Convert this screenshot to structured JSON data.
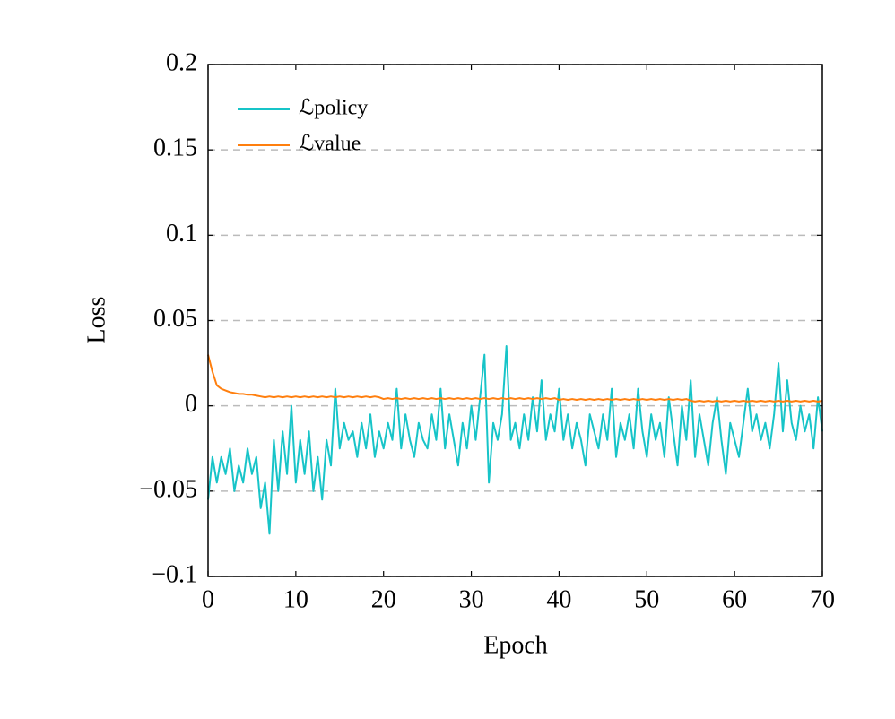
{
  "chart_data": {
    "type": "line",
    "xlabel": "Epoch",
    "ylabel": "Loss",
    "x": [
      0,
      0.5,
      1,
      1.5,
      2,
      2.5,
      3,
      3.5,
      4,
      4.5,
      5,
      5.5,
      6,
      6.5,
      7,
      7.5,
      8,
      8.5,
      9,
      9.5,
      10,
      10.5,
      11,
      11.5,
      12,
      12.5,
      13,
      13.5,
      14,
      14.5,
      15,
      15.5,
      16,
      16.5,
      17,
      17.5,
      18,
      18.5,
      19,
      19.5,
      20,
      20.5,
      21,
      21.5,
      22,
      22.5,
      23,
      23.5,
      24,
      24.5,
      25,
      25.5,
      26,
      26.5,
      27,
      27.5,
      28,
      28.5,
      29,
      29.5,
      30,
      30.5,
      31,
      31.5,
      32,
      32.5,
      33,
      33.5,
      34,
      34.5,
      35,
      35.5,
      36,
      36.5,
      37,
      37.5,
      38,
      38.5,
      39,
      39.5,
      40,
      40.5,
      41,
      41.5,
      42,
      42.5,
      43,
      43.5,
      44,
      44.5,
      45,
      45.5,
      46,
      46.5,
      47,
      47.5,
      48,
      48.5,
      49,
      49.5,
      50,
      50.5,
      51,
      51.5,
      52,
      52.5,
      53,
      53.5,
      54,
      54.5,
      55,
      55.5,
      56,
      56.5,
      57,
      57.5,
      58,
      58.5,
      59,
      59.5,
      60,
      60.5,
      61,
      61.5,
      62,
      62.5,
      63,
      63.5,
      64,
      64.5,
      65,
      65.5,
      66,
      66.5,
      67,
      67.5,
      68,
      68.5,
      69,
      69.5,
      70
    ],
    "series": [
      {
        "name": "ℒpolicy",
        "color": "#17c4c8",
        "values": [
          -0.055,
          -0.03,
          -0.045,
          -0.03,
          -0.04,
          -0.025,
          -0.05,
          -0.035,
          -0.045,
          -0.025,
          -0.04,
          -0.03,
          -0.06,
          -0.045,
          -0.075,
          -0.02,
          -0.05,
          -0.015,
          -0.04,
          0.0,
          -0.045,
          -0.02,
          -0.04,
          -0.015,
          -0.05,
          -0.03,
          -0.055,
          -0.02,
          -0.035,
          0.01,
          -0.025,
          -0.01,
          -0.02,
          -0.015,
          -0.03,
          -0.01,
          -0.025,
          -0.005,
          -0.03,
          -0.015,
          -0.025,
          -0.01,
          -0.02,
          0.01,
          -0.025,
          -0.005,
          -0.02,
          -0.03,
          -0.01,
          -0.02,
          -0.025,
          -0.005,
          -0.02,
          0.01,
          -0.025,
          -0.005,
          -0.02,
          -0.035,
          -0.01,
          -0.025,
          0.0,
          -0.02,
          0.005,
          0.03,
          -0.045,
          -0.01,
          -0.02,
          -0.005,
          0.035,
          -0.02,
          -0.01,
          -0.025,
          -0.005,
          -0.02,
          0.005,
          -0.015,
          0.015,
          -0.02,
          -0.005,
          -0.015,
          0.01,
          -0.02,
          -0.005,
          -0.025,
          -0.01,
          -0.02,
          -0.035,
          -0.005,
          -0.015,
          -0.025,
          -0.005,
          -0.02,
          0.01,
          -0.03,
          -0.01,
          -0.02,
          -0.005,
          -0.025,
          0.01,
          -0.015,
          -0.03,
          -0.005,
          -0.02,
          -0.01,
          -0.03,
          0.005,
          -0.015,
          -0.035,
          0.0,
          -0.02,
          0.015,
          -0.03,
          -0.005,
          -0.02,
          -0.035,
          -0.01,
          0.005,
          -0.02,
          -0.04,
          -0.01,
          -0.02,
          -0.03,
          -0.01,
          0.01,
          -0.015,
          -0.005,
          -0.02,
          -0.01,
          -0.025,
          -0.005,
          0.025,
          -0.015,
          0.015,
          -0.01,
          -0.02,
          0.0,
          -0.015,
          -0.005,
          -0.025,
          0.005,
          -0.015
        ]
      },
      {
        "name": "ℒvalue",
        "color": "#ff7f0e",
        "values": [
          0.03,
          0.02,
          0.012,
          0.01,
          0.009,
          0.008,
          0.0075,
          0.007,
          0.007,
          0.0065,
          0.0065,
          0.006,
          0.0055,
          0.005,
          0.0055,
          0.005,
          0.0055,
          0.005,
          0.0055,
          0.005,
          0.0055,
          0.005,
          0.0055,
          0.005,
          0.0055,
          0.005,
          0.0055,
          0.005,
          0.0055,
          0.005,
          0.0055,
          0.005,
          0.0055,
          0.005,
          0.0055,
          0.005,
          0.0055,
          0.005,
          0.0055,
          0.005,
          0.004,
          0.0045,
          0.004,
          0.0045,
          0.004,
          0.0045,
          0.004,
          0.0045,
          0.004,
          0.0045,
          0.004,
          0.0045,
          0.004,
          0.0045,
          0.004,
          0.0045,
          0.004,
          0.0045,
          0.004,
          0.0045,
          0.004,
          0.0045,
          0.004,
          0.0045,
          0.004,
          0.0045,
          0.004,
          0.0045,
          0.004,
          0.0045,
          0.004,
          0.0045,
          0.004,
          0.0045,
          0.004,
          0.0045,
          0.004,
          0.0045,
          0.004,
          0.0045,
          0.0035,
          0.004,
          0.0035,
          0.004,
          0.0035,
          0.004,
          0.0035,
          0.004,
          0.0035,
          0.004,
          0.0035,
          0.004,
          0.0035,
          0.004,
          0.0035,
          0.004,
          0.0035,
          0.004,
          0.0035,
          0.004,
          0.0035,
          0.004,
          0.0035,
          0.004,
          0.0035,
          0.004,
          0.0035,
          0.004,
          0.0035,
          0.004,
          0.003,
          0.0025,
          0.003,
          0.0025,
          0.003,
          0.0025,
          0.003,
          0.0025,
          0.003,
          0.0025,
          0.003,
          0.0025,
          0.003,
          0.0025,
          0.003,
          0.0025,
          0.003,
          0.0025,
          0.003,
          0.0025,
          0.003,
          0.0025,
          0.003,
          0.0025,
          0.003,
          0.0025,
          0.003,
          0.0025,
          0.003,
          0.0025,
          0.003
        ]
      }
    ],
    "xlim": [
      0,
      70
    ],
    "xticks": [
      0,
      10,
      20,
      30,
      40,
      50,
      60,
      70
    ],
    "ylim": [
      -0.1,
      0.2
    ],
    "yticks": [
      {
        "value": -0.1,
        "label": "−0.1"
      },
      {
        "value": -0.05,
        "label": "−0.05"
      },
      0,
      0.05,
      0.1,
      0.15,
      0.2
    ],
    "grid": true,
    "legend": "upper left"
  }
}
